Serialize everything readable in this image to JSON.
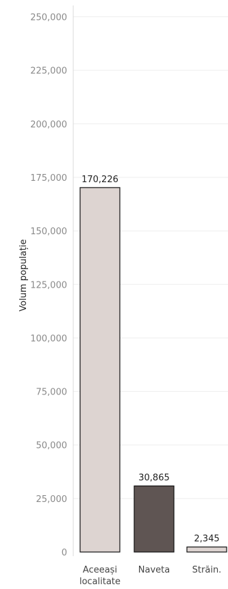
{
  "chart_data": {
    "type": "bar",
    "title": "",
    "xlabel": "",
    "ylabel": "Volum populație",
    "ylim": [
      0,
      250000
    ],
    "yticks": [
      0,
      25000,
      50000,
      75000,
      100000,
      125000,
      150000,
      175000,
      200000,
      225000,
      250000
    ],
    "ytick_labels": [
      "0",
      "25,000",
      "50,000",
      "75,000",
      "100,000",
      "125,000",
      "150,000",
      "175,000",
      "200,000",
      "225,000",
      "250,000"
    ],
    "grid": true,
    "legend": "none",
    "categories": [
      [
        "Aceeași",
        "localitate"
      ],
      [
        "Naveta"
      ],
      [
        "Străin."
      ]
    ],
    "values": [
      170226,
      30865,
      2345
    ],
    "data_labels": [
      "170,226",
      "30,865",
      "2,345"
    ],
    "colors": [
      "#ddd4d1",
      "#5f5553",
      "#ddd4d1"
    ],
    "bar_stroke": "#111111",
    "grid_color": "#eeeeee",
    "axis_color": "#d8d8d8"
  }
}
